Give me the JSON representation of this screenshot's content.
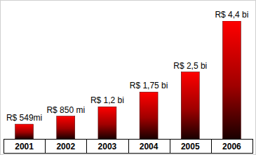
{
  "chart_data": {
    "type": "bar",
    "categories": [
      "2001",
      "2002",
      "2003",
      "2004",
      "2005",
      "2006"
    ],
    "values": [
      549,
      850,
      1200,
      1750,
      2500,
      4400
    ],
    "value_labels": [
      "R$ 549mi",
      "R$ 850 mi",
      "R$ 1,2 bi",
      "R$ 1,75 bi",
      "R$ 2,5 bi",
      "R$ 4,4 bi"
    ],
    "color": "#ff0000",
    "ylim": [
      0,
      4400
    ],
    "data_labels": true,
    "tick_labels": "x",
    "grid": false
  }
}
